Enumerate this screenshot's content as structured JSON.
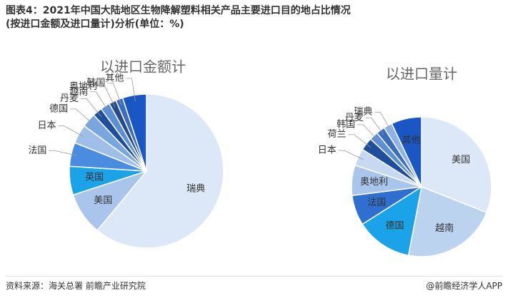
{
  "title": "图表4：2021年中国大陆地区生物降解塑料相关产品主要进口目的地占比情况(按进口金额及进口量计)分析(单位：%)",
  "source": "资料来源：海关总署 前瞻产业研究院",
  "credit": "@前瞻经济学人APP",
  "chart_data": [
    {
      "type": "pie",
      "title": "以进口金额计",
      "categories": [
        "瑞典",
        "美国",
        "英国",
        "法国",
        "日本",
        "德国",
        "丹麦",
        "越南",
        "奥地利",
        "韩国",
        "其他"
      ],
      "values": [
        61,
        9,
        6,
        5,
        4,
        3,
        2,
        2,
        1.5,
        1.5,
        5
      ],
      "colors": [
        "#dce8f7",
        "#a9c5ec",
        "#1aa3e8",
        "#4a8de0",
        "#9fbfe8",
        "#7aa6e0",
        "#1f4e9c",
        "#5b8fd6",
        "#254a8a",
        "#3a6cc0",
        "#1a56c4"
      ]
    },
    {
      "type": "pie",
      "title": "以进口量计",
      "categories": [
        "美国",
        "越南",
        "德国",
        "法国",
        "奥地利",
        "日本",
        "荷兰",
        "韩国",
        "丹麦",
        "瑞典",
        "其他"
      ],
      "values": [
        31,
        22,
        13,
        7,
        7,
        4,
        3,
        2,
        2,
        2,
        7
      ],
      "colors": [
        "#dce8f7",
        "#bcd3f0",
        "#1aa3e8",
        "#2f6fd0",
        "#a9c5ec",
        "#c6d8f2",
        "#1f4e9c",
        "#5b8fd6",
        "#3a6cc0",
        "#90b3e6",
        "#1a56c4"
      ]
    }
  ]
}
